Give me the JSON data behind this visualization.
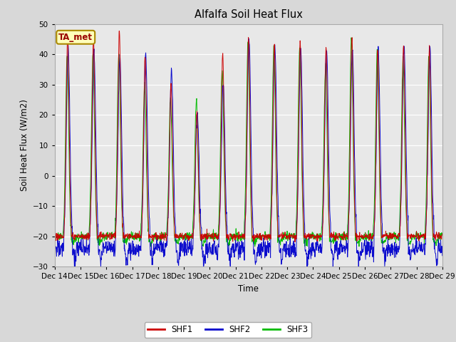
{
  "title": "Alfalfa Soil Heat Flux",
  "ylabel": "Soil Heat Flux (W/m2)",
  "xlabel": "Time",
  "ylim": [
    -30,
    50
  ],
  "yticks": [
    -30,
    -20,
    -10,
    0,
    10,
    20,
    30,
    40,
    50
  ],
  "fig_bg_color": "#d8d8d8",
  "plot_bg_color": "#e8e8e8",
  "legend_label": "TA_met",
  "series_labels": [
    "SHF1",
    "SHF2",
    "SHF3"
  ],
  "series_colors": [
    "#cc0000",
    "#0000cc",
    "#00bb00"
  ],
  "start_day": 14,
  "n_days": 15,
  "points_per_day": 96,
  "day_peaks_shf1": [
    46,
    45,
    48,
    40,
    30,
    21,
    40,
    46,
    43,
    44,
    42,
    46,
    42,
    43,
    42
  ],
  "day_peaks_shf2": [
    42,
    40,
    40,
    40,
    35,
    21,
    30,
    46,
    43,
    43,
    42,
    42,
    42,
    43,
    42
  ],
  "day_peaks_shf3": [
    40,
    40,
    40,
    30,
    25,
    25,
    35,
    44,
    42,
    42,
    36,
    45,
    42,
    38,
    40
  ],
  "trough_base": -20,
  "trough_shf2_extra": -27
}
